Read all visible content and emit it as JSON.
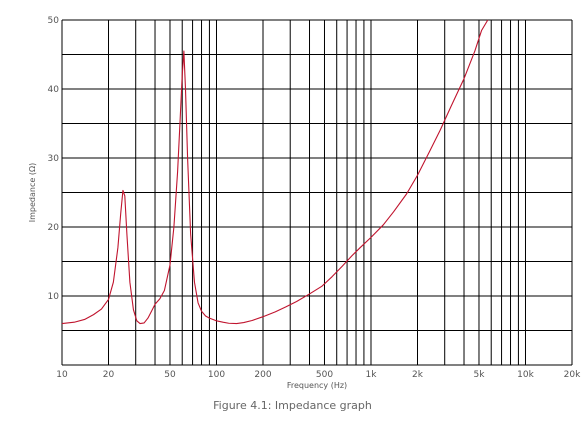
{
  "chart_data": {
    "type": "line",
    "xscale": "log",
    "xlim": [
      10,
      20000
    ],
    "ylim": [
      0,
      50
    ],
    "xlabel": "Frequency (Hz)",
    "ylabel": "Impedance (Ω)",
    "grid": true,
    "x_ticks": [
      {
        "value": 10,
        "label": "10"
      },
      {
        "value": 20,
        "label": "20"
      },
      {
        "value": 50,
        "label": "50"
      },
      {
        "value": 100,
        "label": "100"
      },
      {
        "value": 200,
        "label": "200"
      },
      {
        "value": 500,
        "label": "500"
      },
      {
        "value": 1000,
        "label": "1k"
      },
      {
        "value": 2000,
        "label": "2k"
      },
      {
        "value": 5000,
        "label": "5k"
      },
      {
        "value": 10000,
        "label": "10k"
      },
      {
        "value": 20000,
        "label": "20k"
      }
    ],
    "y_ticks": [
      {
        "value": 10,
        "label": "10"
      },
      {
        "value": 20,
        "label": "20"
      },
      {
        "value": 30,
        "label": "30"
      },
      {
        "value": 40,
        "label": "40"
      },
      {
        "value": 50,
        "label": "50"
      }
    ],
    "series": [
      {
        "color": "#c0142e",
        "x": [
          10,
          12,
          14,
          16,
          18,
          20,
          21.5,
          23,
          24,
          24.8,
          25.5,
          26.3,
          27.5,
          29,
          30.5,
          32,
          34,
          36,
          38,
          40,
          43,
          46,
          50,
          53,
          56,
          58,
          60,
          61.5,
          63,
          65,
          68,
          72,
          76,
          80,
          85,
          90,
          95,
          100,
          110,
          120,
          135,
          150,
          170,
          200,
          240,
          280,
          330,
          400,
          480,
          560,
          650,
          750,
          850,
          1000,
          1200,
          1400,
          1700,
          2000,
          2400,
          2800,
          3300,
          4000,
          4700,
          5200,
          5700
        ],
        "y": [
          6,
          6.2,
          6.6,
          7.3,
          8.1,
          9.5,
          12,
          17,
          22,
          25.3,
          24.5,
          19,
          12,
          8,
          6.4,
          6,
          6.1,
          6.8,
          7.8,
          8.8,
          9.6,
          10.8,
          14.5,
          20,
          28,
          35,
          42,
          45.5,
          40,
          30,
          19,
          12,
          9,
          7.8,
          7.1,
          6.8,
          6.6,
          6.4,
          6.2,
          6.05,
          6,
          6.15,
          6.45,
          7,
          7.7,
          8.4,
          9.2,
          10.3,
          11.4,
          12.8,
          14.3,
          15.8,
          17,
          18.5,
          20.3,
          22.2,
          24.8,
          27.5,
          31,
          34,
          37.5,
          41.5,
          45.5,
          48.5,
          50
        ]
      }
    ]
  },
  "caption": "Figure 4.1: Impedance graph"
}
